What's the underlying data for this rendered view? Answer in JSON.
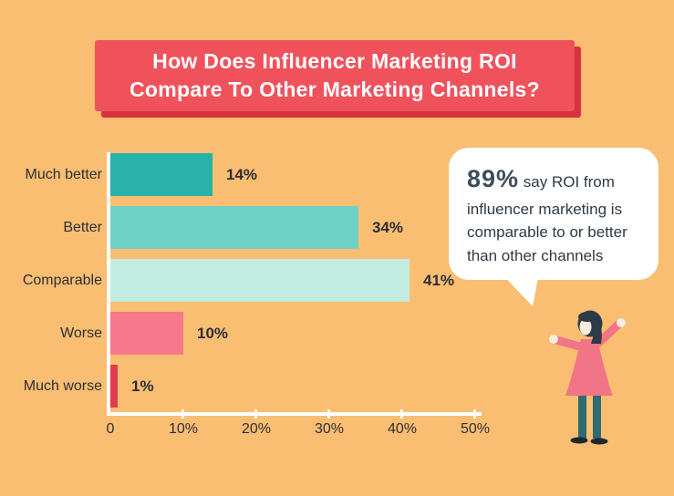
{
  "background_color": "#F9BE72",
  "title": {
    "line1": "How Does Influencer Marketing ROI",
    "line2": "Compare To Other Marketing Channels?",
    "banner_color": "#F0525C",
    "banner_shadow_color": "#D6333F",
    "text_color": "#FFFFFF"
  },
  "chart_data": {
    "type": "bar",
    "orientation": "horizontal",
    "categories": [
      "Much better",
      "Better",
      "Comparable",
      "Worse",
      "Much worse"
    ],
    "values": [
      14,
      34,
      41,
      10,
      1
    ],
    "value_labels": [
      "14%",
      "34%",
      "41%",
      "10%",
      "1%"
    ],
    "bar_colors": [
      "#29B2A8",
      "#6FD1C5",
      "#C3EDE1",
      "#F5798B",
      "#E23B4C"
    ],
    "x_ticks": [
      "0",
      "10%",
      "20%",
      "30%",
      "40%",
      "50%"
    ],
    "xlim": [
      0,
      50
    ],
    "axis_color": "#FFFFFF",
    "label_color": "#2E2E35",
    "grid": false,
    "legend": false,
    "title": "",
    "xlabel": "",
    "ylabel": ""
  },
  "callout": {
    "stat": "89%",
    "text": "say ROI from influencer marketing is comparable to or better than other channels",
    "stat_color": "#3D4D5C",
    "text_color": "#2E3A44",
    "bubble_color": "#FFFFFF"
  },
  "illustration": {
    "name": "woman-arms-raised",
    "colors": {
      "dress": "#F27487",
      "hair": "#2D3A47",
      "legs": "#2E6B72",
      "shoes": "#20262D",
      "skin": "#F6EDDE"
    }
  }
}
